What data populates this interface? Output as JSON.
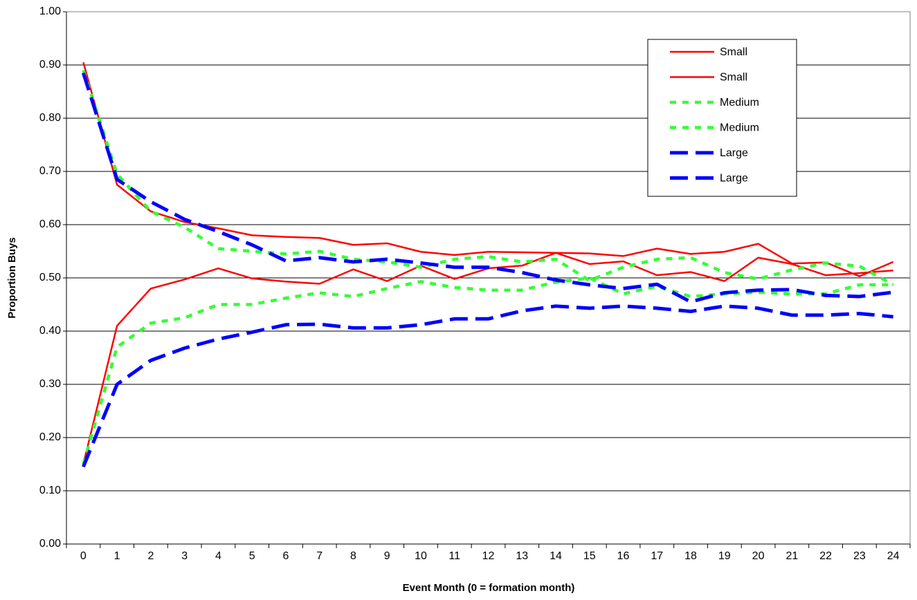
{
  "chart_data": {
    "type": "line",
    "xlabel": "Event Month (0 = formation month)",
    "ylabel": "Proportion Buys",
    "categories": [
      "0",
      "1",
      "2",
      "3",
      "4",
      "5",
      "6",
      "7",
      "8",
      "9",
      "10",
      "11",
      "12",
      "13",
      "14",
      "15",
      "16",
      "17",
      "18",
      "19",
      "20",
      "21",
      "22",
      "23",
      "24"
    ],
    "ylim": [
      0,
      1
    ],
    "yticks": [
      {
        "value": 0,
        "label": "0.00"
      },
      {
        "value": 0.1,
        "label": "0.10"
      },
      {
        "value": 0.2,
        "label": "0.20"
      },
      {
        "value": 0.3,
        "label": "0.30"
      },
      {
        "value": 0.4,
        "label": "0.40"
      },
      {
        "value": 0.5,
        "label": "0.50"
      },
      {
        "value": 0.6,
        "label": "0.60"
      },
      {
        "value": 0.7,
        "label": "0.70"
      },
      {
        "value": 0.8,
        "label": "0.80"
      },
      {
        "value": 0.9,
        "label": "0.90"
      },
      {
        "value": 1,
        "label": "1.00"
      }
    ],
    "grid": true,
    "legend": "upper right",
    "series": [
      {
        "name": "Small",
        "color": "#ff0000",
        "style": "solid",
        "values": [
          0.905,
          0.675,
          0.625,
          0.605,
          0.593,
          0.58,
          0.577,
          0.575,
          0.562,
          0.565,
          0.549,
          0.543,
          0.549,
          0.548,
          0.547,
          0.546,
          0.541,
          0.555,
          0.545,
          0.549,
          0.564,
          0.527,
          0.529,
          0.503,
          0.53
        ]
      },
      {
        "name": "Small",
        "color": "#ff0000",
        "style": "solid",
        "values": [
          0.15,
          0.41,
          0.48,
          0.497,
          0.518,
          0.499,
          0.493,
          0.489,
          0.516,
          0.494,
          0.523,
          0.498,
          0.518,
          0.523,
          0.547,
          0.526,
          0.531,
          0.505,
          0.511,
          0.494,
          0.538,
          0.526,
          0.505,
          0.509,
          0.514
        ]
      },
      {
        "name": "Medium",
        "color": "#33ff33",
        "style": "dotted",
        "values": [
          0.89,
          0.695,
          0.625,
          0.595,
          0.555,
          0.55,
          0.545,
          0.55,
          0.535,
          0.53,
          0.52,
          0.535,
          0.54,
          0.53,
          0.535,
          0.495,
          0.52,
          0.535,
          0.538,
          0.51,
          0.498,
          0.515,
          0.528,
          0.522,
          0.487
        ]
      },
      {
        "name": "Medium",
        "color": "#33ff33",
        "style": "dotted",
        "values": [
          0.15,
          0.37,
          0.415,
          0.425,
          0.45,
          0.45,
          0.462,
          0.472,
          0.465,
          0.48,
          0.493,
          0.482,
          0.477,
          0.477,
          0.492,
          0.5,
          0.47,
          0.484,
          0.465,
          0.47,
          0.473,
          0.47,
          0.47,
          0.487,
          0.487
        ]
      },
      {
        "name": "Large",
        "color": "#0000ff",
        "style": "dashed",
        "values": [
          0.885,
          0.685,
          0.643,
          0.61,
          0.587,
          0.562,
          0.532,
          0.538,
          0.53,
          0.535,
          0.528,
          0.52,
          0.52,
          0.51,
          0.496,
          0.487,
          0.48,
          0.488,
          0.455,
          0.472,
          0.477,
          0.478,
          0.467,
          0.465,
          0.473
        ]
      },
      {
        "name": "Large",
        "color": "#0000ff",
        "style": "dashed",
        "values": [
          0.145,
          0.3,
          0.345,
          0.368,
          0.385,
          0.398,
          0.412,
          0.413,
          0.406,
          0.406,
          0.412,
          0.423,
          0.423,
          0.438,
          0.447,
          0.443,
          0.447,
          0.443,
          0.437,
          0.447,
          0.443,
          0.43,
          0.43,
          0.433,
          0.427
        ]
      }
    ]
  }
}
